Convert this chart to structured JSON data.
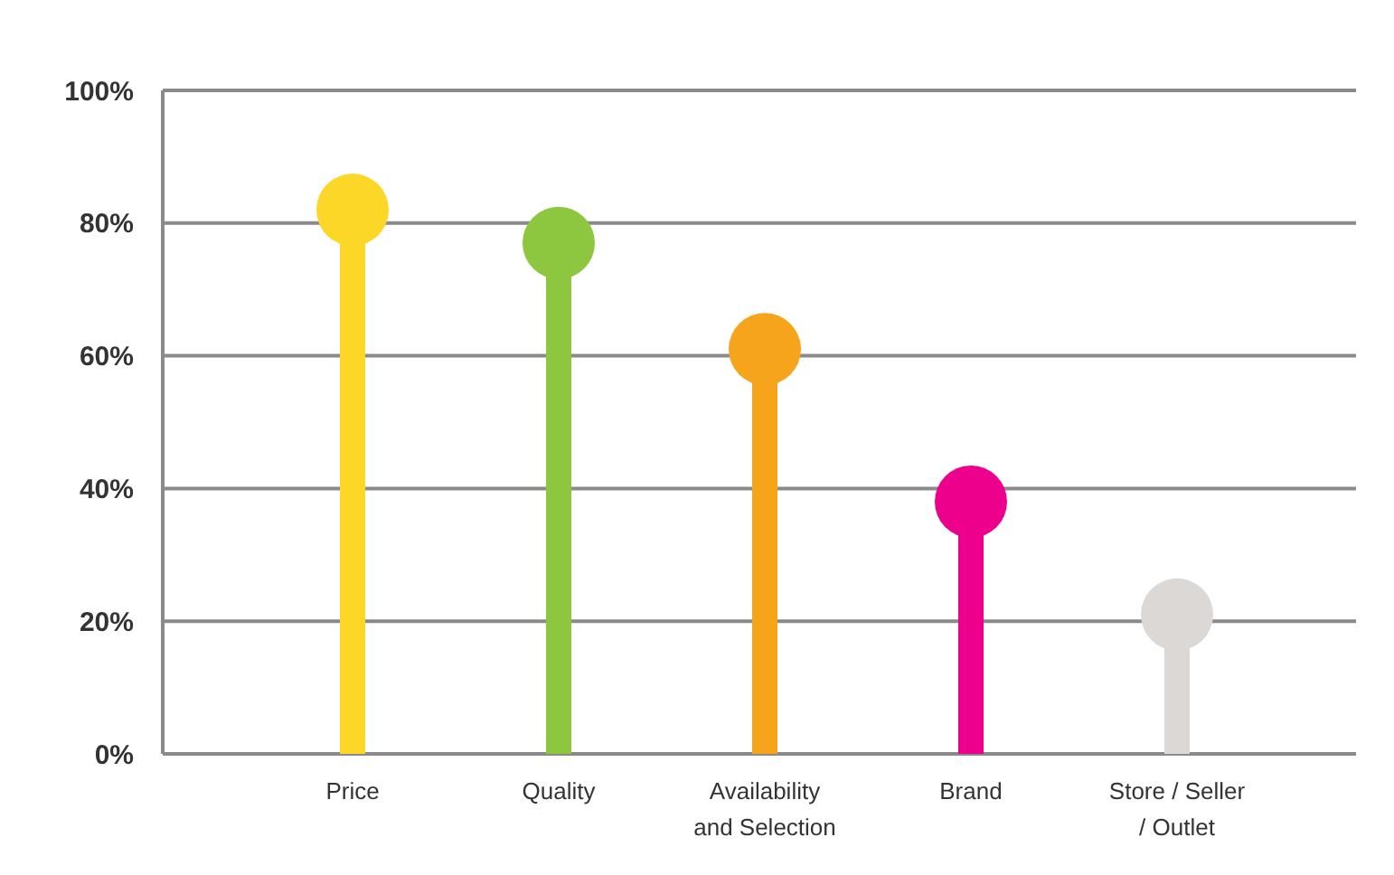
{
  "chart_data": {
    "type": "lollipop",
    "categories": [
      "Price",
      "Quality",
      "Availability and Selection",
      "Brand",
      "Store / Seller / Outlet"
    ],
    "values": [
      82,
      77,
      61,
      38,
      21
    ],
    "colors": [
      "#fcd728",
      "#8dc63f",
      "#f7a41d",
      "#ec008c",
      "#dcd8d5"
    ],
    "ylim": [
      0,
      100
    ],
    "yticks": [
      {
        "value": 0,
        "label": "0%"
      },
      {
        "value": 20,
        "label": "20%"
      },
      {
        "value": 40,
        "label": "40%"
      },
      {
        "value": 60,
        "label": "60%"
      },
      {
        "value": 80,
        "label": "80%"
      },
      {
        "value": 100,
        "label": "100%"
      }
    ],
    "grid": "y"
  }
}
